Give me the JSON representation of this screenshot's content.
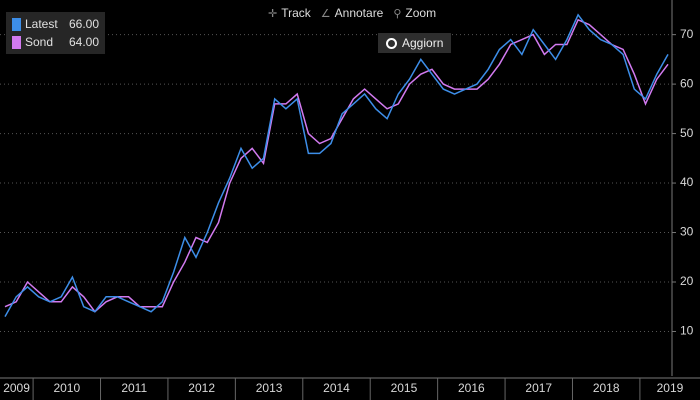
{
  "chart_data": {
    "type": "line",
    "toolbar": {
      "track": "Track",
      "annotate": "Annotare",
      "zoom": "Zoom",
      "refresh": "Aggiorn"
    },
    "categories": [
      "2009",
      null,
      null,
      "2010",
      null,
      null,
      null,
      null,
      null,
      "2011",
      null,
      null,
      null,
      null,
      null,
      "2012",
      null,
      null,
      null,
      null,
      null,
      "2013",
      null,
      null,
      null,
      null,
      null,
      "2014",
      null,
      null,
      null,
      null,
      null,
      "2015",
      null,
      null,
      null,
      null,
      null,
      "2016",
      null,
      null,
      null,
      null,
      null,
      "2017",
      null,
      null,
      null,
      null,
      null,
      "2018",
      null,
      null,
      null,
      null,
      null,
      "2019",
      null,
      null
    ],
    "series": [
      {
        "name": "Latest",
        "last_label": "66.00",
        "color": "#3d8ee8",
        "values": [
          13,
          17,
          19,
          17,
          16,
          17,
          21,
          15,
          14,
          17,
          17,
          16,
          15,
          14,
          16,
          22,
          29,
          25,
          30,
          36,
          41,
          47,
          43,
          45,
          57,
          55,
          57,
          46,
          46,
          48,
          54,
          56,
          58,
          55,
          53,
          58,
          61,
          65,
          62,
          59,
          58,
          59,
          60,
          63,
          67,
          69,
          66,
          71,
          68,
          65,
          69,
          74,
          71,
          69,
          68,
          66,
          59,
          57,
          62,
          66
        ]
      },
      {
        "name": "Sond",
        "last_label": "64.00",
        "color": "#d27af0",
        "values": [
          15,
          16,
          20,
          18,
          16,
          16,
          19,
          17,
          14,
          16,
          17,
          17,
          15,
          15,
          15,
          20,
          24,
          29,
          28,
          32,
          40,
          45,
          47,
          44,
          56,
          56,
          58,
          50,
          48,
          49,
          53,
          57,
          59,
          57,
          55,
          56,
          60,
          62,
          63,
          60,
          59,
          59,
          59,
          61,
          64,
          68,
          69,
          70,
          66,
          68,
          68,
          73,
          72,
          70,
          68,
          67,
          62,
          56,
          61,
          64
        ]
      }
    ],
    "ylim": [
      1,
      77
    ],
    "yticks": [
      10,
      20,
      30,
      40,
      50,
      60,
      70
    ],
    "grid": true
  }
}
